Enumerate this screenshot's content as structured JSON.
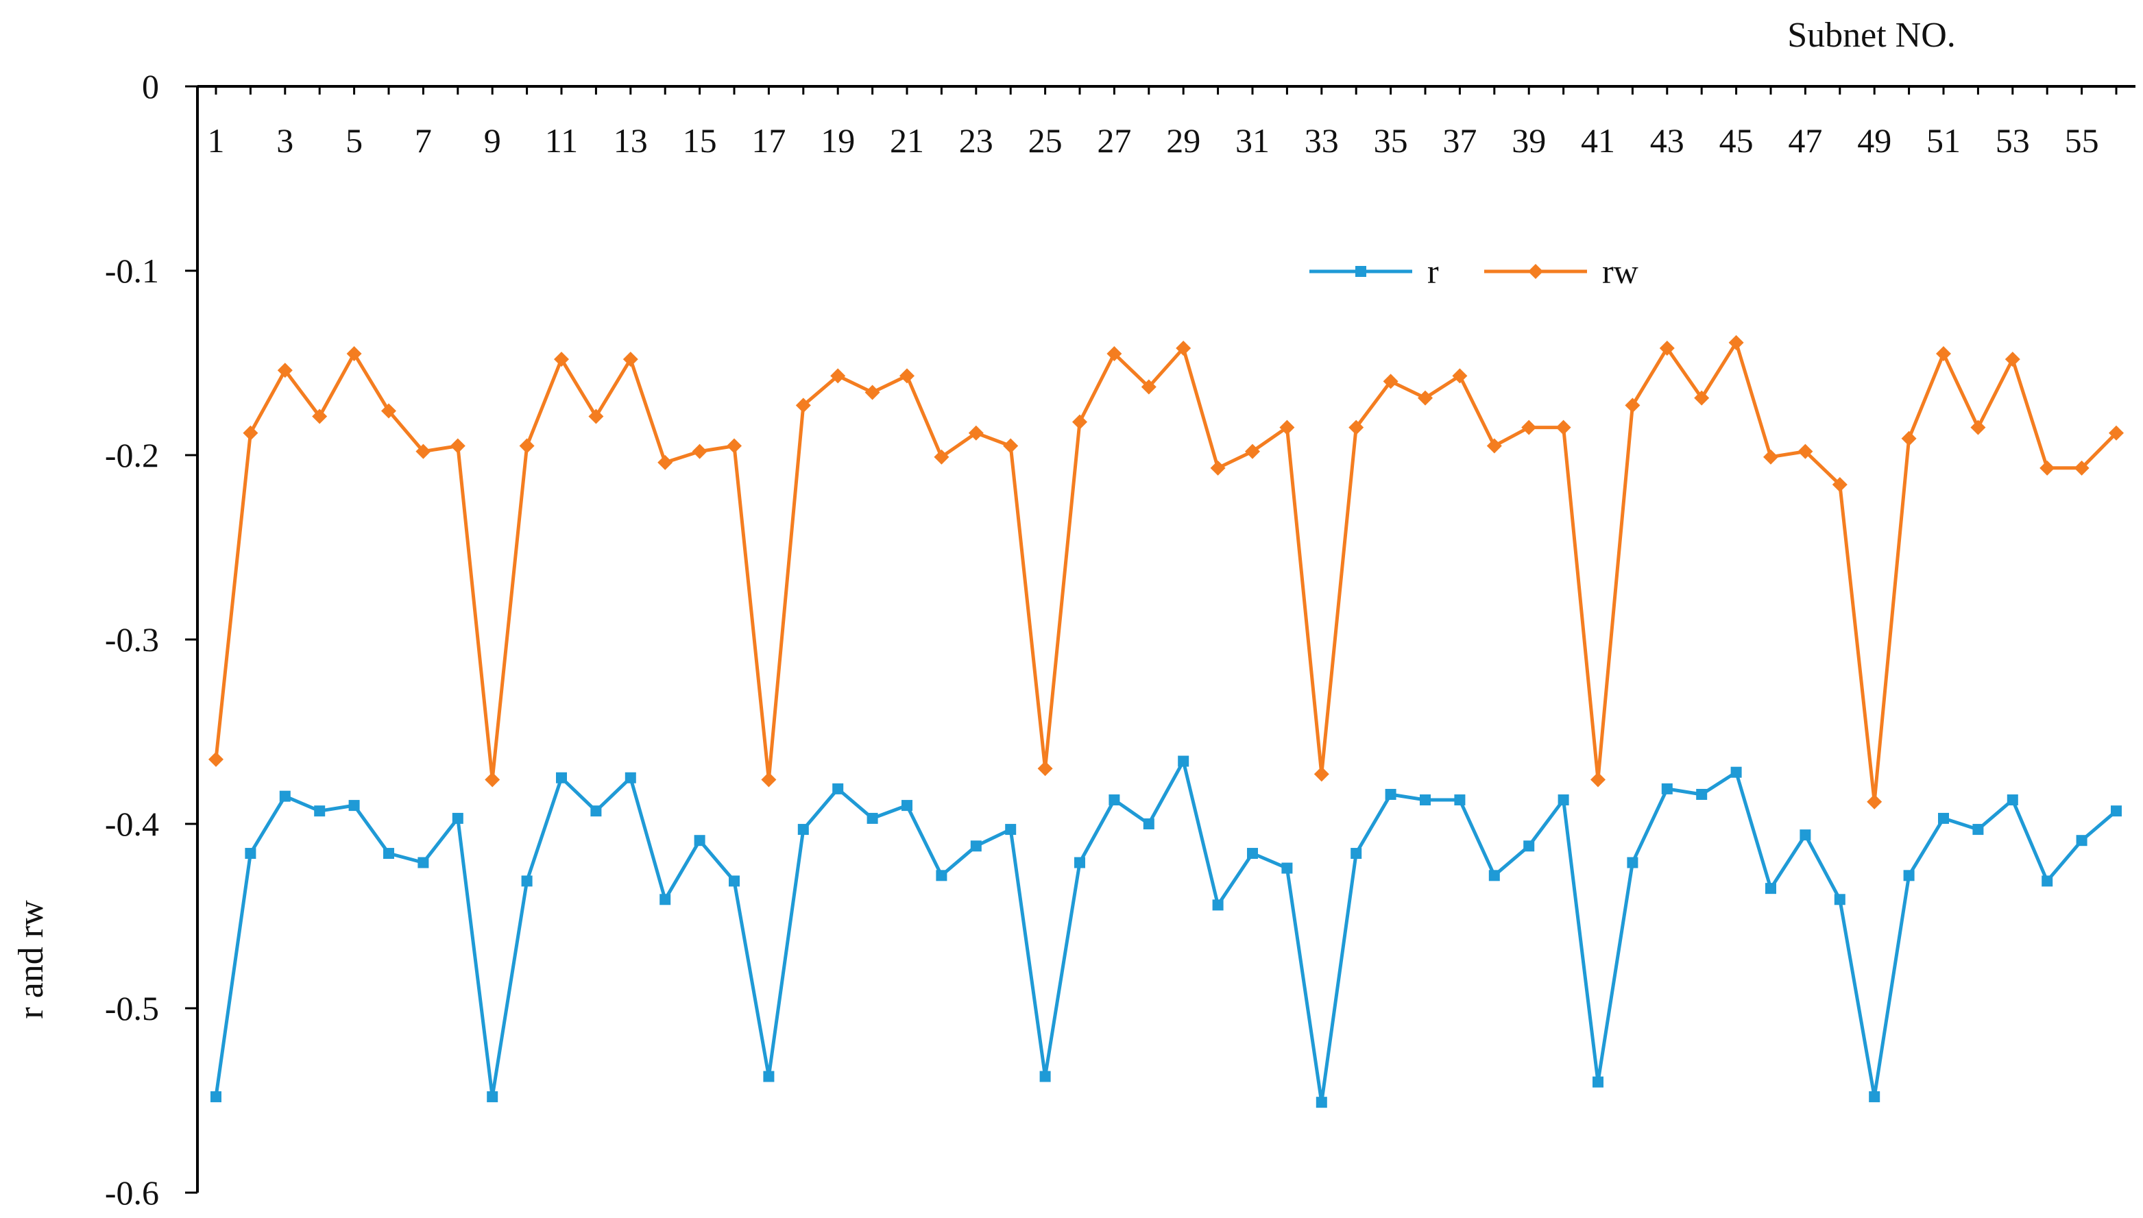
{
  "chart_data": {
    "type": "line",
    "title": "",
    "xlabel": "Subnet NO.",
    "ylabel": "r and rw",
    "ylim": [
      -0.6,
      0
    ],
    "y_ticks": [
      0,
      -0.1,
      -0.2,
      -0.3,
      -0.4,
      -0.5,
      -0.6
    ],
    "y_tick_labels": [
      "0",
      "-0.1",
      "-0.2",
      "-0.3",
      "-0.4",
      "-0.5",
      "-0.6"
    ],
    "x_tick_labels": [
      "1",
      "3",
      "5",
      "7",
      "9",
      "11",
      "13",
      "15",
      "17",
      "19",
      "21",
      "23",
      "25",
      "27",
      "29",
      "31",
      "33",
      "35",
      "37",
      "39",
      "41",
      "43",
      "45",
      "47",
      "49",
      "51",
      "53",
      "55"
    ],
    "x_axis_position": "top",
    "grid": false,
    "legend": {
      "placement": "top-center",
      "entries": [
        "r",
        "rw"
      ]
    },
    "colors": {
      "r": "#1f9ad6",
      "rw": "#f47d20"
    },
    "x": [
      1,
      2,
      3,
      4,
      5,
      6,
      7,
      8,
      9,
      10,
      11,
      12,
      13,
      14,
      15,
      16,
      17,
      18,
      19,
      20,
      21,
      22,
      23,
      24,
      25,
      26,
      27,
      28,
      29,
      30,
      31,
      32,
      33,
      34,
      35,
      36,
      37,
      38,
      39,
      40,
      41,
      42,
      43,
      44,
      45,
      46,
      47,
      48,
      49,
      50,
      51,
      52,
      53,
      54,
      55,
      56
    ],
    "series": [
      {
        "name": "r",
        "marker": "square",
        "values": [
          -0.548,
          -0.416,
          -0.385,
          -0.393,
          -0.39,
          -0.416,
          -0.421,
          -0.397,
          -0.548,
          -0.431,
          -0.375,
          -0.393,
          -0.375,
          -0.441,
          -0.409,
          -0.431,
          -0.537,
          -0.403,
          -0.381,
          -0.397,
          -0.39,
          -0.428,
          -0.412,
          -0.403,
          -0.537,
          -0.421,
          -0.387,
          -0.4,
          -0.366,
          -0.444,
          -0.416,
          -0.424,
          -0.551,
          -0.416,
          -0.384,
          -0.387,
          -0.387,
          -0.428,
          -0.412,
          -0.387,
          -0.54,
          -0.421,
          -0.381,
          -0.384,
          -0.372,
          -0.435,
          -0.406,
          -0.441,
          -0.548,
          -0.428,
          -0.397,
          -0.403,
          -0.387,
          -0.431,
          -0.409,
          -0.393
        ]
      },
      {
        "name": "rw",
        "marker": "diamond",
        "values": [
          -0.365,
          -0.188,
          -0.154,
          -0.179,
          -0.145,
          -0.176,
          -0.198,
          -0.195,
          -0.376,
          -0.195,
          -0.148,
          -0.179,
          -0.148,
          -0.204,
          -0.198,
          -0.195,
          -0.376,
          -0.173,
          -0.157,
          -0.166,
          -0.157,
          -0.201,
          -0.188,
          -0.195,
          -0.37,
          -0.182,
          -0.145,
          -0.163,
          -0.142,
          -0.207,
          -0.198,
          -0.185,
          -0.373,
          -0.185,
          -0.16,
          -0.169,
          -0.157,
          -0.195,
          -0.185,
          -0.185,
          -0.376,
          -0.173,
          -0.142,
          -0.169,
          -0.139,
          -0.201,
          -0.198,
          -0.216,
          -0.388,
          -0.191,
          -0.145,
          -0.185,
          -0.148,
          -0.207,
          -0.207,
          -0.188
        ]
      }
    ]
  }
}
